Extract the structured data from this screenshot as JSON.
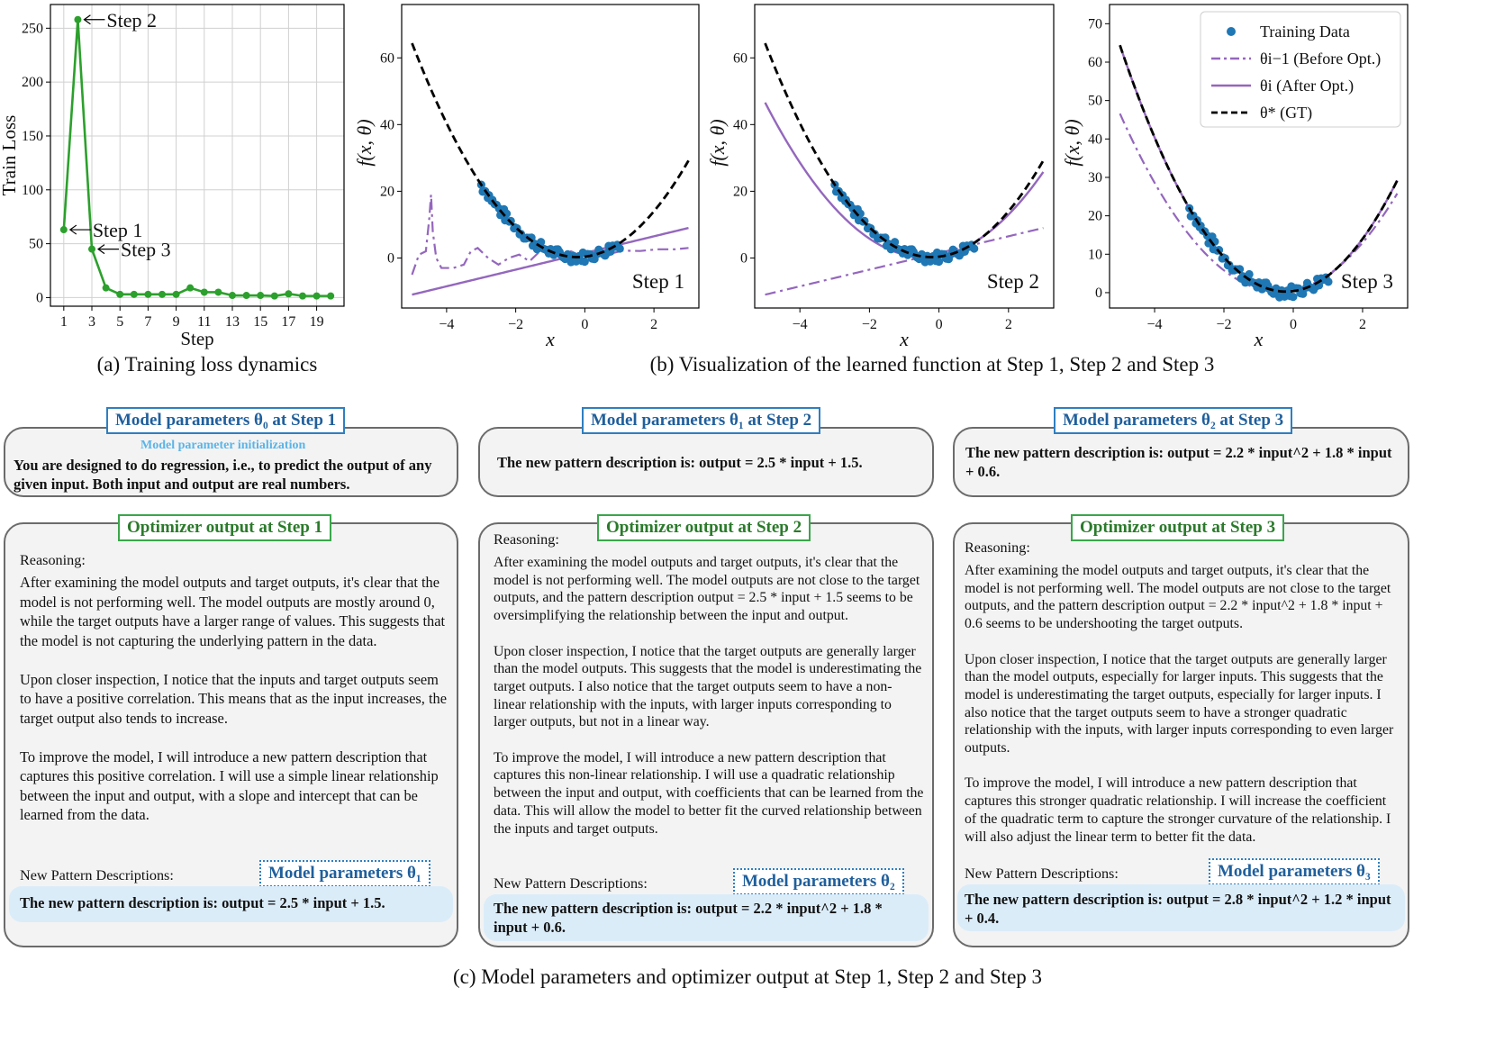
{
  "captions": {
    "a": "(a) Training loss dynamics",
    "b": "(b) Visualization of the learned function at Step 1, Step 2 and Step 3",
    "c": "(c) Model parameters and optimizer output at Step 1, Step 2 and Step 3"
  },
  "chart_data": [
    {
      "type": "line",
      "xlabel": "Step",
      "ylabel": "Train Loss",
      "x": [
        1,
        2,
        3,
        4,
        5,
        6,
        7,
        8,
        9,
        10,
        11,
        12,
        13,
        14,
        15,
        16,
        17,
        18,
        19,
        20
      ],
      "y": [
        63,
        258,
        45,
        9,
        3,
        3,
        3,
        3,
        3,
        9,
        5,
        5,
        2,
        2,
        2,
        1.5,
        3.5,
        1.5,
        1.5,
        1.5
      ],
      "xticks": [
        "1",
        "3",
        "5",
        "7",
        "9",
        "11",
        "13",
        "15",
        "17",
        "19"
      ],
      "yticks": [
        "0",
        "50",
        "100",
        "150",
        "200",
        "250"
      ],
      "ylim": [
        -8,
        272
      ],
      "color": "#2ca02c",
      "annotations": [
        {
          "text": "Step 1",
          "x": 1,
          "y": 63
        },
        {
          "text": "Step 2",
          "x": 2,
          "y": 258
        },
        {
          "text": "Step 3",
          "x": 3,
          "y": 45
        }
      ],
      "grid": true
    },
    {
      "type": "line",
      "xlabel": "x",
      "ylabel": "f(x, θ)",
      "xlim": [
        -5.3,
        3.3
      ],
      "ylim": [
        -15,
        76
      ],
      "xticks": [
        "−4",
        "−2",
        "0",
        "2"
      ],
      "yticks": [
        "0",
        "20",
        "40",
        "60"
      ],
      "label": "Step 1",
      "gt": {
        "a": 2.8,
        "b": 1.2,
        "c": 0.4
      },
      "after": {
        "a": 0,
        "b": 2.5,
        "c": 1.5
      },
      "before_points": [
        [
          -5,
          -5
        ],
        [
          -4.8,
          1
        ],
        [
          -4.6,
          2
        ],
        [
          -4.5,
          12
        ],
        [
          -4.45,
          19
        ],
        [
          -4.4,
          8
        ],
        [
          -4.3,
          0
        ],
        [
          -4.15,
          -3
        ],
        [
          -4,
          -3
        ],
        [
          -3.8,
          -3
        ],
        [
          -3.5,
          -2
        ],
        [
          -3.3,
          2
        ],
        [
          -3.1,
          3
        ],
        [
          -2.8,
          0
        ],
        [
          -2.5,
          -2
        ],
        [
          -2.2,
          0
        ],
        [
          -1.9,
          1
        ],
        [
          -1.6,
          -1
        ],
        [
          -1.3,
          2
        ],
        [
          -1,
          1.5
        ],
        [
          -0.7,
          0.5
        ],
        [
          -0.4,
          2
        ],
        [
          -0.1,
          0.5
        ],
        [
          0.3,
          2
        ],
        [
          0.7,
          1.2
        ],
        [
          1.1,
          2.2
        ],
        [
          1.6,
          2.1
        ],
        [
          2.1,
          2.6
        ],
        [
          2.6,
          2.6
        ],
        [
          3,
          3
        ]
      ]
    },
    {
      "type": "line",
      "xlabel": "x",
      "ylabel": "f(x, θ)",
      "xlim": [
        -5.3,
        3.3
      ],
      "ylim": [
        -15,
        76
      ],
      "xticks": [
        "−4",
        "−2",
        "0",
        "2"
      ],
      "yticks": [
        "0",
        "20",
        "40",
        "60"
      ],
      "label": "Step 2",
      "gt": {
        "a": 2.8,
        "b": 1.2,
        "c": 0.4
      },
      "after": {
        "a": 2.2,
        "b": 1.8,
        "c": 0.6
      },
      "before": {
        "a": 0,
        "b": 2.5,
        "c": 1.5
      }
    },
    {
      "type": "line",
      "xlabel": "x",
      "ylabel": "f(x, θ)",
      "xlim": [
        -5.3,
        3.3
      ],
      "ylim": [
        -4,
        75
      ],
      "xticks": [
        "−4",
        "−2",
        "0",
        "2"
      ],
      "yticks": [
        "0",
        "10",
        "20",
        "30",
        "40",
        "50",
        "60",
        "70"
      ],
      "label": "Step 3",
      "gt": {
        "a": 2.8,
        "b": 1.2,
        "c": 0.4
      },
      "after": {
        "a": 2.8,
        "b": 1.2,
        "c": 0.4
      },
      "before": {
        "a": 2.2,
        "b": 1.8,
        "c": 0.6
      },
      "legend": [
        {
          "name": "Training Data",
          "style": "scatter",
          "color": "#1f77b4"
        },
        {
          "name": "θi−1 (Before Opt.)",
          "style": "dashdot",
          "color": "#9467bd"
        },
        {
          "name": "θi (After Opt.)",
          "style": "solid",
          "color": "#9467bd"
        },
        {
          "name": "θ* (GT)",
          "style": "dashed",
          "color": "#000000"
        }
      ],
      "legend_location": "top-right"
    }
  ],
  "training_data_x_range": [
    -3,
    1
  ],
  "panels": {
    "p1": {
      "title": "Model parameters θ₀ at Step 1",
      "subtitle": "Model parameter initialization",
      "text": "You are designed to do regression, i.e., to predict the output of any given input. Both input and output are real numbers.",
      "opt_title": "Optimizer output at Step 1",
      "reasoning_label": "Reasoning:",
      "reasoning": "After examining the model outputs and target outputs, it's clear that the model is not performing well. The model outputs are mostly around 0, while the target outputs have a larger range of values. This suggests that the model is not capturing the underlying pattern in the data.\n\nUpon closer inspection, I notice that the inputs and target outputs seem to have a positive correlation. This means that as the input increases, the target output also tends to increase.\n\nTo improve the model, I will introduce a new pattern description that captures this positive correlation. I will use a simple linear relationship between the input and output, with a slope and intercept that can be learned from the data.",
      "npd_label": "New Pattern Descriptions:",
      "param_tag": "Model parameters θ₁",
      "new_pattern": "The new pattern description is: output = 2.5 * input + 1.5."
    },
    "p2": {
      "title": "Model parameters θ₁ at Step 2",
      "text": "The new pattern description is: output = 2.5 * input + 1.5.",
      "opt_title": "Optimizer output at Step 2",
      "reasoning_label": "Reasoning:",
      "reasoning": "After examining the model outputs and target outputs, it's clear that the model is not performing well. The model outputs are not close to the target outputs, and the pattern description output = 2.5 * input + 1.5 seems to be oversimplifying the relationship between the input and output.\n\nUpon closer inspection, I notice that the target outputs are generally larger than the model outputs. This suggests that the model is underestimating the target outputs. I also notice that the target outputs seem to have a non-linear relationship with the inputs, with larger inputs corresponding to larger outputs, but not in a linear way.\n\nTo improve the model, I will introduce a new pattern description that captures this non-linear relationship. I will use a quadratic relationship between the input and output, with coefficients that can be learned from the data. This will allow the model to better fit the curved relationship between the inputs and target outputs.",
      "npd_label": "New Pattern Descriptions:",
      "param_tag": "Model parameters θ₂",
      "new_pattern": "The new pattern description is: output = 2.2 * input^2 + 1.8 * input + 0.6."
    },
    "p3": {
      "title": "Model parameters θ₂ at Step 3",
      "text": "The new pattern description is: output = 2.2 * input^2 + 1.8 * input + 0.6.",
      "opt_title": "Optimizer output at Step 3",
      "reasoning_label": "Reasoning:",
      "reasoning": "After examining the model outputs and target outputs, it's clear that the model is not performing well. The model outputs are not close to the target outputs, and the pattern description output = 2.2 * input^2 + 1.8 * input + 0.6 seems to be undershooting the target outputs.\n\nUpon closer inspection, I notice that the target outputs are generally larger than the model outputs, especially for larger inputs. This suggests that the model is underestimating the target outputs, especially for larger inputs. I also notice that the target outputs seem to have a stronger quadratic relationship with the inputs, with larger inputs corresponding to even larger outputs.\n\nTo improve the model, I will introduce a new pattern description that captures this stronger quadratic relationship. I will increase the coefficient of the quadratic term to capture the stronger curvature of the relationship. I will also adjust the linear term to better fit the data.",
      "npd_label": "New Pattern Descriptions:",
      "param_tag": "Model parameters θ₃",
      "new_pattern": "The new pattern description is: output = 2.8 * input^2 + 1.2 * input + 0.4."
    }
  }
}
